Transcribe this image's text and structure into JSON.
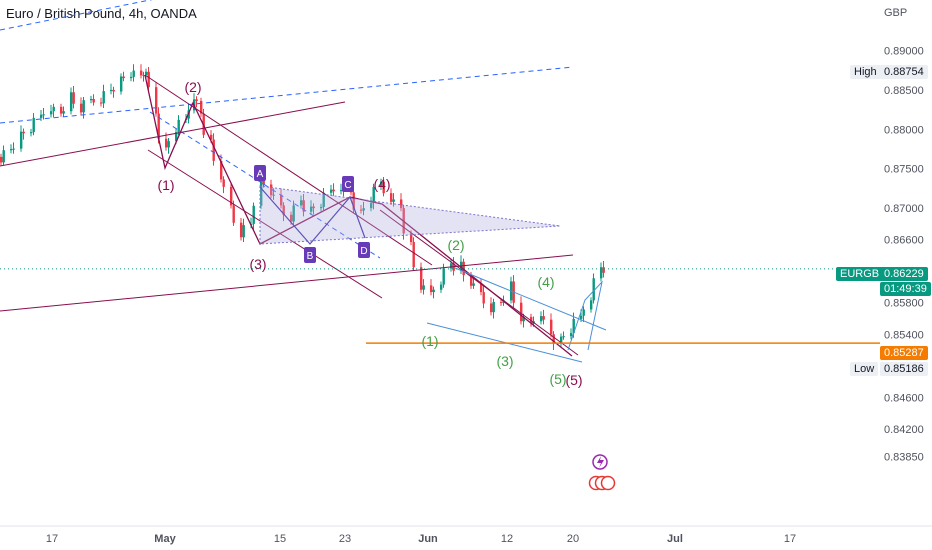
{
  "chart_data": {
    "type": "candlestick",
    "title": "Euro / British Pound, 4h, OANDA",
    "currency": "GBP",
    "symbol": "EURGBP",
    "price_axis": {
      "ylim": [
        0.8365,
        0.8932
      ],
      "ticks": [
        "0.89000",
        "0.88500",
        "0.88000",
        "0.87500",
        "0.87000",
        "0.86600",
        "0.85800",
        "0.85400",
        "0.85000",
        "0.84600",
        "0.84200",
        "0.83850"
      ]
    },
    "date_axis": {
      "ticks": [
        "17",
        "May",
        "15",
        "23",
        "Jun",
        "12",
        "20",
        "Jul",
        "17"
      ],
      "bold": [
        "May",
        "Jun",
        "Jul"
      ]
    },
    "markers": {
      "high": {
        "label": "High",
        "value": "0.88754"
      },
      "last": {
        "label": "EURGBP",
        "value": "0.86229",
        "countdown": "01:49:39"
      },
      "level": {
        "value": "0.85287"
      },
      "low": {
        "label": "Low",
        "value": "0.85186"
      }
    },
    "path_x": [
      0,
      10,
      20,
      30,
      40,
      50,
      60,
      70,
      80,
      90,
      100,
      110,
      120,
      130,
      140,
      145,
      155,
      165,
      175,
      185,
      193,
      200,
      210,
      220,
      230,
      240,
      250,
      260,
      270,
      280,
      290,
      300,
      310,
      320,
      330,
      340,
      350,
      360,
      370,
      380,
      390,
      400,
      410,
      420,
      430,
      440,
      450,
      460,
      470,
      480,
      490,
      500,
      510,
      520,
      530,
      540,
      550,
      560,
      570,
      580,
      590,
      600
    ],
    "path_close": [
      0.8765,
      0.8775,
      0.879,
      0.88,
      0.8815,
      0.883,
      0.882,
      0.884,
      0.8825,
      0.8835,
      0.884,
      0.885,
      0.886,
      0.887,
      0.8865,
      0.888,
      0.882,
      0.877,
      0.88,
      0.881,
      0.8845,
      0.882,
      0.878,
      0.874,
      0.87,
      0.867,
      0.868,
      0.874,
      0.872,
      0.87,
      0.869,
      0.871,
      0.8695,
      0.8705,
      0.872,
      0.873,
      0.872,
      0.869,
      0.871,
      0.873,
      0.8715,
      0.87,
      0.865,
      0.86,
      0.859,
      0.861,
      0.863,
      0.8625,
      0.8605,
      0.859,
      0.8575,
      0.858,
      0.86,
      0.856,
      0.855,
      0.857,
      0.854,
      0.853,
      0.8545,
      0.856,
      0.859,
      0.8625
    ],
    "wave_labels": {
      "maroon": [
        "(1)",
        "(2)",
        "(3)",
        "(4)",
        "(5)"
      ],
      "green": [
        "(1)",
        "(2)",
        "(3)",
        "(4)",
        "(5)"
      ],
      "points": [
        "A",
        "B",
        "C",
        "D"
      ]
    },
    "colors": {
      "up": "#089981",
      "down": "#f23645",
      "maroon": "#880e4f",
      "blue_line": "#2962ff",
      "green_label": "#43a047",
      "orange": "#f57c00",
      "purple": "#673ab7",
      "triangle_fill": "#b3aee0"
    },
    "grid": false
  }
}
